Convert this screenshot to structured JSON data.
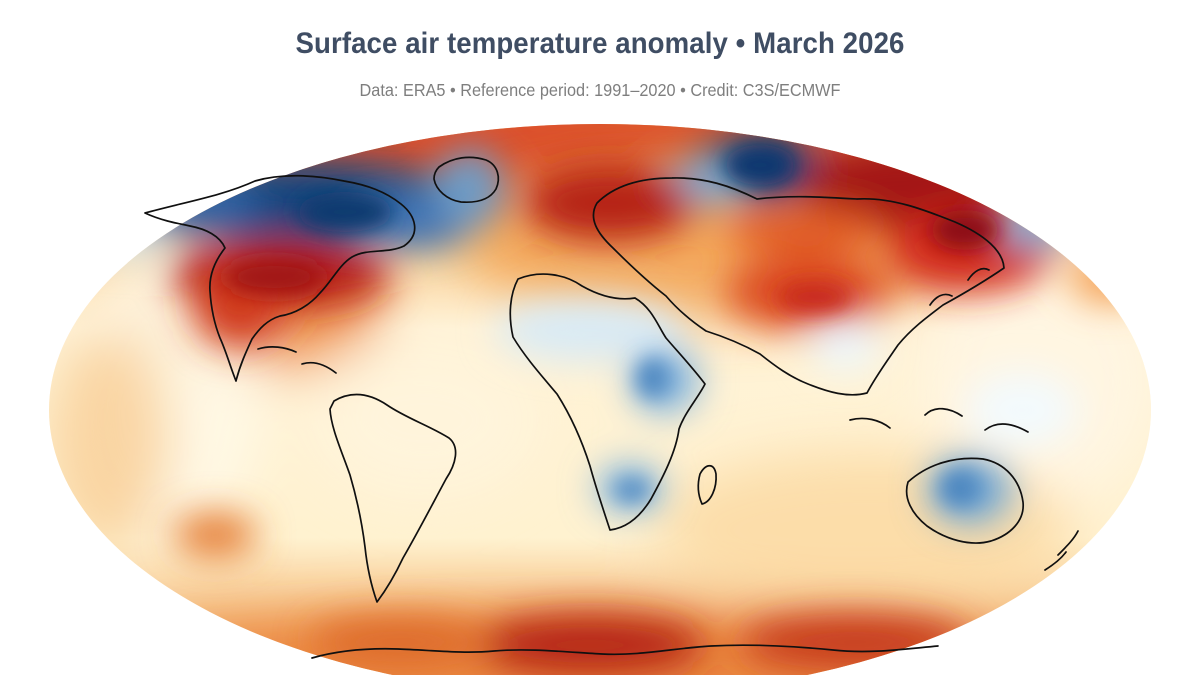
{
  "title": "Surface air temperature anomaly • March 2026",
  "subtitle": "Data: ERA5 • Reference period: 1991–2020 • Credit: C3S/ECMWF",
  "map": {
    "projection": "robinson-like",
    "palette": {
      "deep_blue": "#17447e",
      "mid_blue": "#4b82bd",
      "light_blue": "#c3deef",
      "neutral": "#fff5dc",
      "light_orange": "#f8ca87",
      "orange": "#ee8b39",
      "red": "#d12d1a",
      "deep_red": "#9a1111"
    }
  }
}
